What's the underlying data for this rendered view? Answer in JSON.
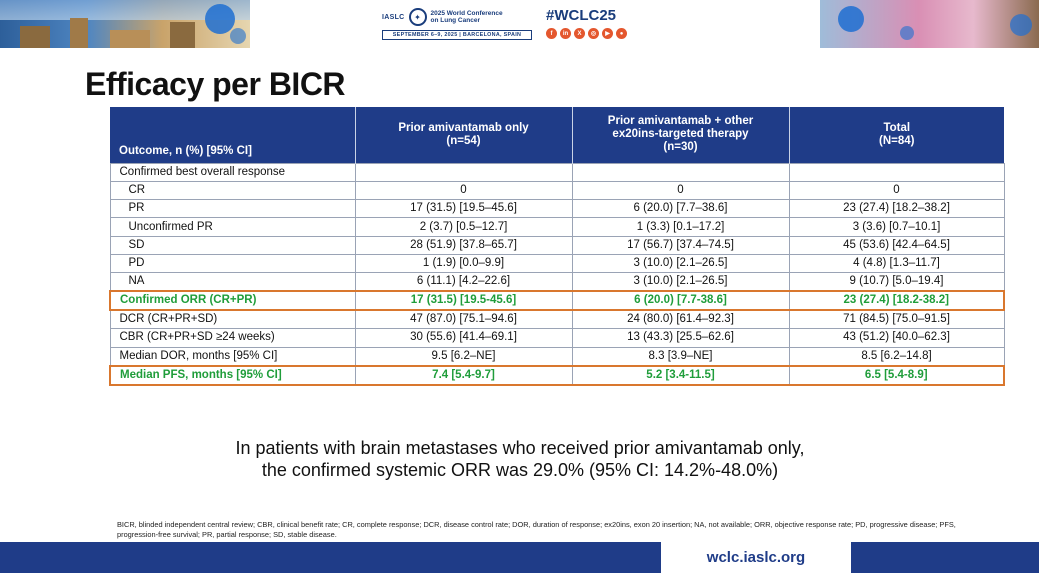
{
  "header": {
    "org": "IASLC",
    "conference_line1": "2025 World Conference",
    "conference_line2": "on Lung Cancer",
    "date_location": "SEPTEMBER 6–9, 2025 | BARCELONA, SPAIN",
    "hashtag": "#WCLC25",
    "social_icons": [
      "facebook-icon",
      "linkedin-icon",
      "x-icon",
      "instagram-icon",
      "youtube-icon",
      "wechat-icon"
    ]
  },
  "title": "Efficacy per BICR",
  "table": {
    "headers": [
      "Outcome, n (%) [95% CI]",
      "Prior amivantamab only\n(n=54)",
      "Prior amivantamab + other\nex20ins-targeted therapy\n(n=30)",
      "Total\n(N=84)"
    ],
    "rows": [
      {
        "label": "Confirmed best overall response",
        "values": [
          "",
          "",
          ""
        ],
        "indent": false,
        "highlight": false
      },
      {
        "label": "CR",
        "values": [
          "0",
          "0",
          "0"
        ],
        "indent": true,
        "highlight": false
      },
      {
        "label": "PR",
        "values": [
          "17 (31.5) [19.5–45.6]",
          "6 (20.0) [7.7–38.6]",
          "23 (27.4) [18.2–38.2]"
        ],
        "indent": true,
        "highlight": false
      },
      {
        "label": "Unconfirmed PR",
        "values": [
          "2 (3.7) [0.5–12.7]",
          "1 (3.3) [0.1–17.2]",
          "3 (3.6) [0.7–10.1]"
        ],
        "indent": true,
        "highlight": false
      },
      {
        "label": "SD",
        "values": [
          "28 (51.9) [37.8–65.7]",
          "17 (56.7) [37.4–74.5]",
          "45 (53.6) [42.4–64.5]"
        ],
        "indent": true,
        "highlight": false
      },
      {
        "label": "PD",
        "values": [
          "1 (1.9) [0.0–9.9]",
          "3 (10.0) [2.1–26.5]",
          "4 (4.8) [1.3–11.7]"
        ],
        "indent": true,
        "highlight": false
      },
      {
        "label": "NA",
        "values": [
          "6 (11.1) [4.2–22.6]",
          "3 (10.0) [2.1–26.5]",
          "9 (10.7) [5.0–19.4]"
        ],
        "indent": true,
        "highlight": false
      },
      {
        "label": "Confirmed ORR (CR+PR)",
        "values": [
          "17 (31.5) [19.5-45.6]",
          "6 (20.0) [7.7-38.6]",
          "23 (27.4) [18.2-38.2]"
        ],
        "indent": false,
        "highlight": true
      },
      {
        "label": "DCR (CR+PR+SD)",
        "values": [
          "47 (87.0) [75.1–94.6]",
          "24 (80.0) [61.4–92.3]",
          "71 (84.5) [75.0–91.5]"
        ],
        "indent": false,
        "highlight": false
      },
      {
        "label": "CBR (CR+PR+SD ≥24 weeks)",
        "values": [
          "30 (55.6) [41.4–69.1]",
          "13 (43.3) [25.5–62.6]",
          "43 (51.2) [40.0–62.3]"
        ],
        "indent": false,
        "highlight": false
      },
      {
        "label": "Median DOR, months [95% CI]",
        "values": [
          "9.5 [6.2–NE]",
          "8.3 [3.9–NE]",
          "8.5 [6.2–14.8]"
        ],
        "indent": false,
        "highlight": false
      },
      {
        "label": "Median PFS, months [95% CI]",
        "values": [
          "7.4 [5.4-9.7]",
          "5.2 [3.4-11.5]",
          "6.5 [5.4-8.9]"
        ],
        "indent": false,
        "highlight": true
      }
    ]
  },
  "summary": {
    "line1": "In patients with brain metastases who received prior amivantamab only,",
    "line2": "the confirmed systemic ORR was 29.0% (95% CI: 14.2%-48.0%)"
  },
  "footnote": "BICR, blinded independent central review; CBR, clinical benefit rate; CR, complete response; DCR, disease control rate; DOR, duration of response; ex20ins, exon 20 insertion; NA, not available; ORR, objective response rate; PD, progressive disease; PFS, progression-free survival; PR, partial response; SD, stable disease.",
  "footer": {
    "url": "wclc.iaslc.org"
  },
  "colors": {
    "header_fill": "#1f3c88",
    "highlight_text": "#1f9d3a",
    "highlight_border": "#d9772e"
  }
}
